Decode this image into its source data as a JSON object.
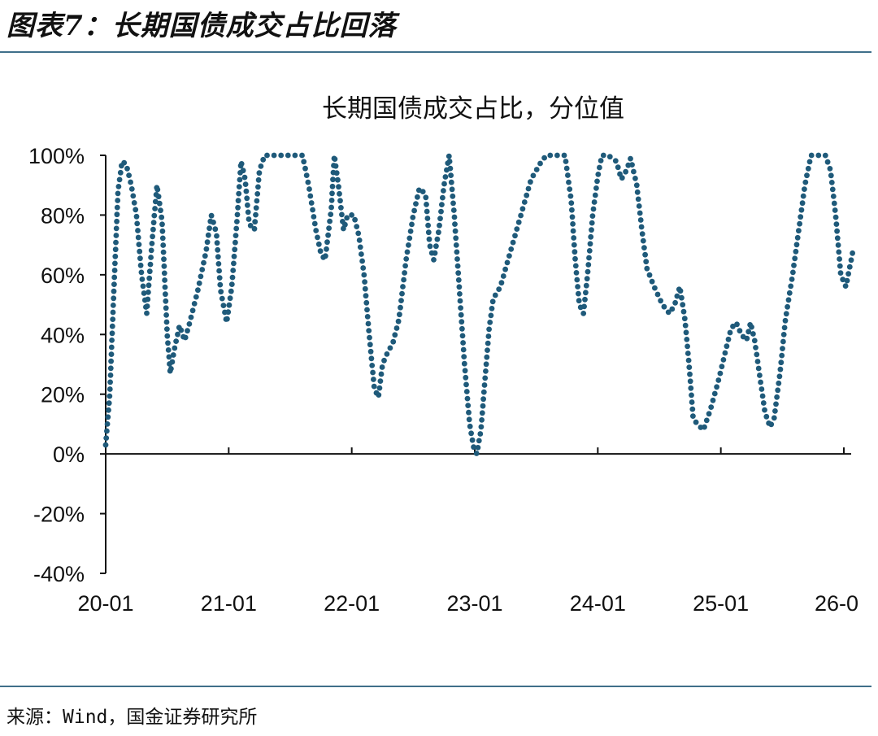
{
  "figure": {
    "title": "图表7：长期国债成交占比回落",
    "source": "来源：Wind，国金证券研究所",
    "rule_color": "#3f6f8a"
  },
  "chart_data": {
    "type": "line",
    "style": "dotted",
    "title": "长期国债成交占比，分位值",
    "xlabel": "",
    "ylabel": "",
    "ylim": [
      -40,
      100
    ],
    "y_ticks": [
      -40,
      -20,
      0,
      20,
      40,
      60,
      80,
      100
    ],
    "y_tick_labels": [
      "-40%",
      "-20%",
      "0%",
      "20%",
      "40%",
      "60%",
      "80%",
      "100%"
    ],
    "x_tick_labels": [
      "20-01",
      "21-01",
      "22-01",
      "23-01",
      "24-01",
      "25-01",
      "26-0"
    ],
    "x_tick_positions": [
      0,
      12,
      24,
      36,
      48,
      60,
      72
    ],
    "x_unit": "months since 20-01",
    "xlim": [
      0,
      73
    ],
    "grid": false,
    "legend": "none",
    "series_color": "#1f5a7a",
    "series": [
      {
        "name": "",
        "points": [
          [
            0,
            3
          ],
          [
            0.4,
            20
          ],
          [
            0.8,
            55
          ],
          [
            1.2,
            88
          ],
          [
            1.6,
            98
          ],
          [
            2.0,
            97
          ],
          [
            2.5,
            90
          ],
          [
            3.0,
            80
          ],
          [
            3.5,
            60
          ],
          [
            4.0,
            47
          ],
          [
            4.5,
            70
          ],
          [
            5.0,
            90
          ],
          [
            5.5,
            78
          ],
          [
            6.0,
            40
          ],
          [
            6.3,
            27
          ],
          [
            6.7,
            35
          ],
          [
            7.2,
            43
          ],
          [
            7.7,
            38
          ],
          [
            8.2,
            44
          ],
          [
            9.0,
            55
          ],
          [
            9.8,
            68
          ],
          [
            10.3,
            80
          ],
          [
            10.8,
            74
          ],
          [
            11.2,
            55
          ],
          [
            11.8,
            44
          ],
          [
            12.3,
            56
          ],
          [
            12.8,
            78
          ],
          [
            13.2,
            98
          ],
          [
            13.6,
            92
          ],
          [
            14.0,
            77
          ],
          [
            14.5,
            75
          ],
          [
            15.0,
            95
          ],
          [
            15.5,
            100
          ],
          [
            16.5,
            100
          ],
          [
            17.5,
            100
          ],
          [
            18.5,
            100
          ],
          [
            19.2,
            100
          ],
          [
            19.8,
            90
          ],
          [
            20.5,
            75
          ],
          [
            21.0,
            67
          ],
          [
            21.4,
            65
          ],
          [
            22.0,
            82
          ],
          [
            22.3,
            100
          ],
          [
            22.7,
            90
          ],
          [
            23.2,
            75
          ],
          [
            23.6,
            80
          ],
          [
            24.2,
            80
          ],
          [
            24.7,
            73
          ],
          [
            25.2,
            60
          ],
          [
            25.7,
            40
          ],
          [
            26.2,
            22
          ],
          [
            26.6,
            19
          ],
          [
            27.0,
            30
          ],
          [
            27.5,
            34
          ],
          [
            28.0,
            37
          ],
          [
            28.6,
            45
          ],
          [
            29.3,
            65
          ],
          [
            30.0,
            80
          ],
          [
            30.6,
            89
          ],
          [
            31.2,
            87
          ],
          [
            31.6,
            70
          ],
          [
            32.0,
            65
          ],
          [
            32.5,
            75
          ],
          [
            33.0,
            90
          ],
          [
            33.5,
            100
          ],
          [
            34.0,
            80
          ],
          [
            34.5,
            55
          ],
          [
            35.0,
            30
          ],
          [
            35.5,
            10
          ],
          [
            35.9,
            2
          ],
          [
            36.2,
            0
          ],
          [
            36.6,
            8
          ],
          [
            37.0,
            25
          ],
          [
            37.4,
            42
          ],
          [
            37.8,
            52
          ],
          [
            38.5,
            56
          ],
          [
            39.5,
            68
          ],
          [
            40.5,
            80
          ],
          [
            41.5,
            92
          ],
          [
            42.5,
            98
          ],
          [
            43.0,
            100
          ],
          [
            44.0,
            100
          ],
          [
            44.8,
            100
          ],
          [
            45.4,
            85
          ],
          [
            45.8,
            65
          ],
          [
            46.2,
            50
          ],
          [
            46.6,
            47
          ],
          [
            47.0,
            60
          ],
          [
            47.5,
            80
          ],
          [
            48.0,
            93
          ],
          [
            48.4,
            100
          ],
          [
            49.0,
            100
          ],
          [
            49.8,
            98
          ],
          [
            50.3,
            92
          ],
          [
            50.8,
            95
          ],
          [
            51.2,
            99
          ],
          [
            51.8,
            90
          ],
          [
            52.3,
            75
          ],
          [
            52.8,
            62
          ],
          [
            53.5,
            56
          ],
          [
            54.3,
            50
          ],
          [
            55.0,
            47
          ],
          [
            55.5,
            50
          ],
          [
            56.0,
            56
          ],
          [
            56.5,
            45
          ],
          [
            56.9,
            30
          ],
          [
            57.3,
            12
          ],
          [
            57.7,
            10
          ],
          [
            58.3,
            8
          ],
          [
            59.0,
            15
          ],
          [
            59.8,
            25
          ],
          [
            60.5,
            35
          ],
          [
            61.0,
            42
          ],
          [
            61.5,
            44
          ],
          [
            62.0,
            40
          ],
          [
            62.5,
            38
          ],
          [
            62.9,
            44
          ],
          [
            63.3,
            38
          ],
          [
            63.8,
            26
          ],
          [
            64.3,
            14
          ],
          [
            64.8,
            9
          ],
          [
            65.2,
            12
          ],
          [
            65.8,
            28
          ],
          [
            66.3,
            45
          ],
          [
            67.0,
            60
          ],
          [
            67.6,
            75
          ],
          [
            68.2,
            90
          ],
          [
            68.8,
            100
          ],
          [
            69.5,
            100
          ],
          [
            70.2,
            100
          ],
          [
            70.7,
            95
          ],
          [
            71.2,
            80
          ],
          [
            71.7,
            60
          ],
          [
            72.2,
            56
          ],
          [
            72.6,
            63
          ],
          [
            73.0,
            70
          ],
          [
            73.4,
            68
          ],
          [
            73.8,
            63
          ],
          [
            74.1,
            55
          ]
        ]
      }
    ]
  }
}
